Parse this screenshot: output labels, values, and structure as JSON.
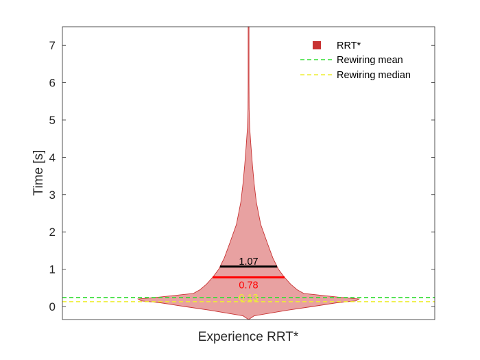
{
  "chart_data": {
    "type": "violin",
    "category": "Experience RRT*",
    "xlabel": "Experience RRT*",
    "ylabel": "Time [s]",
    "ylim": [
      -0.35,
      7.5
    ],
    "yticks": [
      "0",
      "1",
      "2",
      "3",
      "4",
      "5",
      "6",
      "7"
    ],
    "ytick_values": [
      0,
      1,
      2,
      3,
      4,
      5,
      6,
      7
    ],
    "grid": false,
    "legend_position": "top-right",
    "series": [
      {
        "name": "RRT*",
        "color": "#c83232",
        "fill": "#e8a1a1",
        "distribution": {
          "y": [
            -0.35,
            -0.25,
            -0.1,
            0.0,
            0.1,
            0.15,
            0.2,
            0.25,
            0.35,
            0.45,
            0.6,
            0.8,
            1.0,
            1.3,
            1.7,
            2.2,
            2.8,
            3.3,
            3.8,
            4.3,
            4.8,
            5.3,
            6.0,
            7.0,
            7.5
          ],
          "width": [
            0.0,
            0.05,
            0.35,
            0.58,
            0.8,
            0.97,
            1.0,
            0.82,
            0.5,
            0.44,
            0.38,
            0.32,
            0.27,
            0.22,
            0.17,
            0.11,
            0.07,
            0.05,
            0.035,
            0.022,
            0.01,
            0.005,
            0.004,
            0.004,
            0.004
          ]
        }
      }
    ],
    "stat_lines": [
      {
        "name": "mean",
        "value": 1.07,
        "label": "1.07",
        "color": "#000000"
      },
      {
        "name": "median",
        "value": 0.78,
        "label": "0.78",
        "color": "#ff0000"
      }
    ],
    "reference_lines": [
      {
        "name": "Rewiring mean",
        "value": 0.24,
        "color": "#33dd33",
        "label": ""
      },
      {
        "name": "Rewiring median",
        "value": 0.13,
        "color": "#eeee33",
        "label": "0.13"
      }
    ]
  }
}
